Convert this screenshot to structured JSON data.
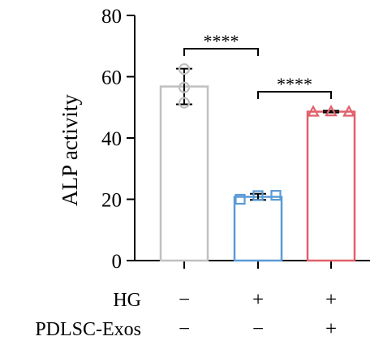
{
  "chart_data": {
    "type": "bar",
    "ylabel": "ALP activity",
    "xlabel": "",
    "ylim": [
      0,
      80
    ],
    "yticks": [
      0,
      20,
      40,
      60,
      80
    ],
    "groups": [
      {
        "mean": 56.8,
        "sd": 5.8,
        "points": [
          62.5,
          56.5,
          51.5
        ],
        "marker": "circle",
        "color": "#c0c0c0"
      },
      {
        "mean": 20.8,
        "sd": 1.0,
        "points": [
          20.0,
          21.2,
          21.3
        ],
        "marker": "square",
        "color": "#5b9bd5"
      },
      {
        "mean": 48.6,
        "sd": 0.3,
        "points": [
          48.6,
          48.7,
          48.6
        ],
        "marker": "triangle",
        "color": "#e0606a"
      }
    ],
    "significance": [
      {
        "from": 0,
        "to": 1,
        "label": "****"
      },
      {
        "from": 1,
        "to": 2,
        "label": "****"
      }
    ],
    "conditions": [
      {
        "label": "HG",
        "values": [
          "−",
          "+",
          "+"
        ]
      },
      {
        "label": "PDLSC-Exos",
        "values": [
          "−",
          "−",
          "+"
        ]
      }
    ]
  }
}
